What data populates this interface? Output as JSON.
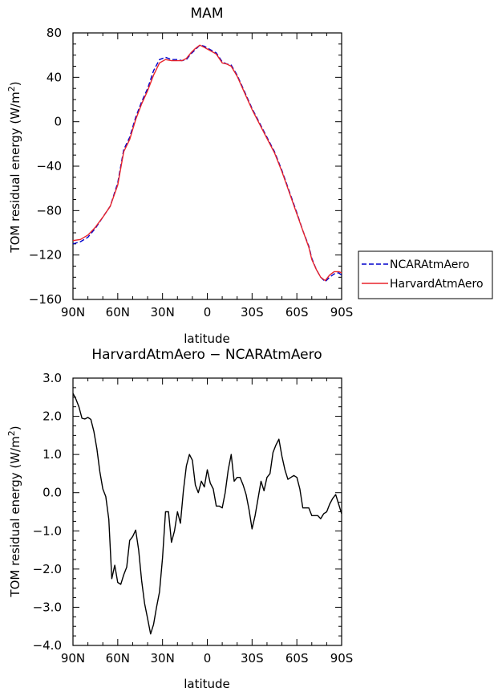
{
  "chart_data": [
    {
      "type": "line",
      "title": "MAM",
      "xlabel": "latitude",
      "ylabel": "TOM residual energy (W/m²)",
      "ylabel_main": "TOM residual energy (W/m",
      "ylabel_sup": "2",
      "ylabel_tail": ")",
      "xlim": [
        90,
        -90
      ],
      "ylim": [
        -160,
        80
      ],
      "x_ticks": [
        90,
        60,
        30,
        0,
        -30,
        -60,
        -90
      ],
      "x_tick_labels": [
        "90N",
        "60N",
        "30N",
        "0",
        "30S",
        "60S",
        "90S"
      ],
      "y_ticks": [
        -160,
        -120,
        -80,
        -40,
        0,
        40,
        80
      ],
      "y_tick_labels": [
        "−160",
        "−120",
        "−80",
        "−40",
        "0",
        "40",
        "80"
      ],
      "legend_position": "right",
      "series": [
        {
          "name": "NCARAtmAero",
          "color": "#0000cc",
          "dash": "dashed",
          "x": [
            90,
            85,
            80,
            75,
            70,
            65,
            60,
            56,
            52,
            48,
            44,
            40,
            36,
            32,
            28,
            24,
            20,
            17,
            14,
            11,
            8,
            5,
            2,
            -2,
            -6,
            -10,
            -13,
            -16,
            -20,
            -25,
            -30,
            -35,
            -40,
            -45,
            -50,
            -55,
            -60,
            -64,
            -68,
            -70,
            -73,
            -76,
            -79,
            -82,
            -85,
            -88,
            -90
          ],
          "y": [
            -110,
            -108,
            -104,
            -96,
            -86,
            -76,
            -55,
            -25,
            -14,
            4,
            18,
            30,
            46,
            56,
            58,
            56,
            56,
            55,
            56,
            61,
            65,
            69,
            68,
            65,
            62,
            54,
            52,
            51,
            42,
            27,
            12,
            -1,
            -14,
            -27,
            -44,
            -63,
            -82,
            -98,
            -112,
            -123,
            -133,
            -140,
            -144,
            -140,
            -137,
            -136,
            -138
          ]
        },
        {
          "name": "HarvardAtmAero",
          "color": "#e8232a",
          "dash": "solid",
          "x": [
            90,
            85,
            80,
            75,
            70,
            65,
            60,
            56,
            52,
            48,
            44,
            40,
            36,
            32,
            28,
            24,
            20,
            17,
            14,
            11,
            8,
            5,
            2,
            -2,
            -6,
            -10,
            -13,
            -16,
            -20,
            -25,
            -30,
            -35,
            -40,
            -45,
            -50,
            -55,
            -60,
            -64,
            -68,
            -70,
            -73,
            -76,
            -79,
            -82,
            -85,
            -88,
            -90
          ],
          "y": [
            -107,
            -106,
            -102,
            -95,
            -86,
            -76,
            -57,
            -27,
            -16,
            2,
            16,
            28,
            42,
            53,
            56,
            55,
            55,
            55,
            57,
            62,
            66,
            69,
            67,
            64,
            61,
            53,
            52,
            50,
            41,
            26,
            11,
            -2,
            -15,
            -28,
            -45,
            -64,
            -83,
            -98,
            -113,
            -124,
            -133,
            -140,
            -143,
            -138,
            -135,
            -135,
            -136
          ]
        }
      ]
    },
    {
      "type": "line",
      "title": "HarvardAtmAero − NCARAtmAero",
      "xlabel": "latitude",
      "ylabel": "TOM residual energy (W/m²)",
      "ylabel_main": "TOM residual energy (W/m",
      "ylabel_sup": "2",
      "ylabel_tail": ")",
      "xlim": [
        90,
        -90
      ],
      "ylim": [
        -4.0,
        3.0
      ],
      "x_ticks": [
        90,
        60,
        30,
        0,
        -30,
        -60,
        -90
      ],
      "x_tick_labels": [
        "90N",
        "60N",
        "30N",
        "0",
        "30S",
        "60S",
        "90S"
      ],
      "y_ticks": [
        -4.0,
        -3.0,
        -2.0,
        -1.0,
        0.0,
        1.0,
        2.0,
        3.0
      ],
      "y_tick_labels": [
        "−4.0",
        "−3.0",
        "−2.0",
        "−1.0",
        "0.0",
        "1.0",
        "2.0",
        "3.0"
      ],
      "series": [
        {
          "name": "",
          "color": "#000000",
          "dash": "solid",
          "x": [
            90,
            88,
            86,
            84,
            82,
            80,
            78,
            76,
            74,
            72,
            70,
            68,
            66,
            64,
            62,
            60,
            58,
            56,
            54,
            52,
            50,
            48,
            46,
            44,
            42,
            40,
            38,
            36,
            34,
            32,
            30,
            28,
            26,
            24,
            22,
            20,
            18,
            16,
            14,
            12,
            10,
            8,
            6,
            4,
            2,
            0,
            -2,
            -4,
            -6,
            -8,
            -10,
            -12,
            -14,
            -16,
            -18,
            -20,
            -22,
            -24,
            -26,
            -28,
            -30,
            -32,
            -34,
            -36,
            -38,
            -40,
            -42,
            -44,
            -46,
            -48,
            -50,
            -52,
            -54,
            -56,
            -58,
            -60,
            -62,
            -64,
            -66,
            -68,
            -70,
            -72,
            -74,
            -76,
            -78,
            -80,
            -82,
            -84,
            -86,
            -88,
            -90
          ],
          "y": [
            2.6,
            2.45,
            2.25,
            1.95,
            1.93,
            1.97,
            1.92,
            1.6,
            1.15,
            0.55,
            0.1,
            -0.1,
            -0.7,
            -2.25,
            -1.9,
            -2.35,
            -2.4,
            -2.15,
            -1.95,
            -1.25,
            -1.15,
            -0.98,
            -1.5,
            -2.3,
            -2.9,
            -3.3,
            -3.7,
            -3.45,
            -3.0,
            -2.6,
            -1.7,
            -0.5,
            -0.5,
            -1.3,
            -1.0,
            -0.5,
            -0.8,
            0.05,
            0.7,
            1.0,
            0.85,
            0.2,
            0.0,
            0.3,
            0.15,
            0.6,
            0.25,
            0.1,
            -0.35,
            -0.35,
            -0.4,
            0.0,
            0.6,
            1.0,
            0.3,
            0.4,
            0.4,
            0.2,
            -0.05,
            -0.45,
            -0.95,
            -0.6,
            -0.15,
            0.3,
            0.05,
            0.4,
            0.5,
            1.05,
            1.25,
            1.4,
            0.95,
            0.6,
            0.35,
            0.4,
            0.45,
            0.4,
            0.1,
            -0.4,
            -0.4,
            -0.4,
            -0.6,
            -0.6,
            -0.6,
            -0.68,
            -0.55,
            -0.5,
            -0.3,
            -0.15,
            -0.05,
            -0.3,
            -0.55
          ]
        }
      ]
    }
  ]
}
